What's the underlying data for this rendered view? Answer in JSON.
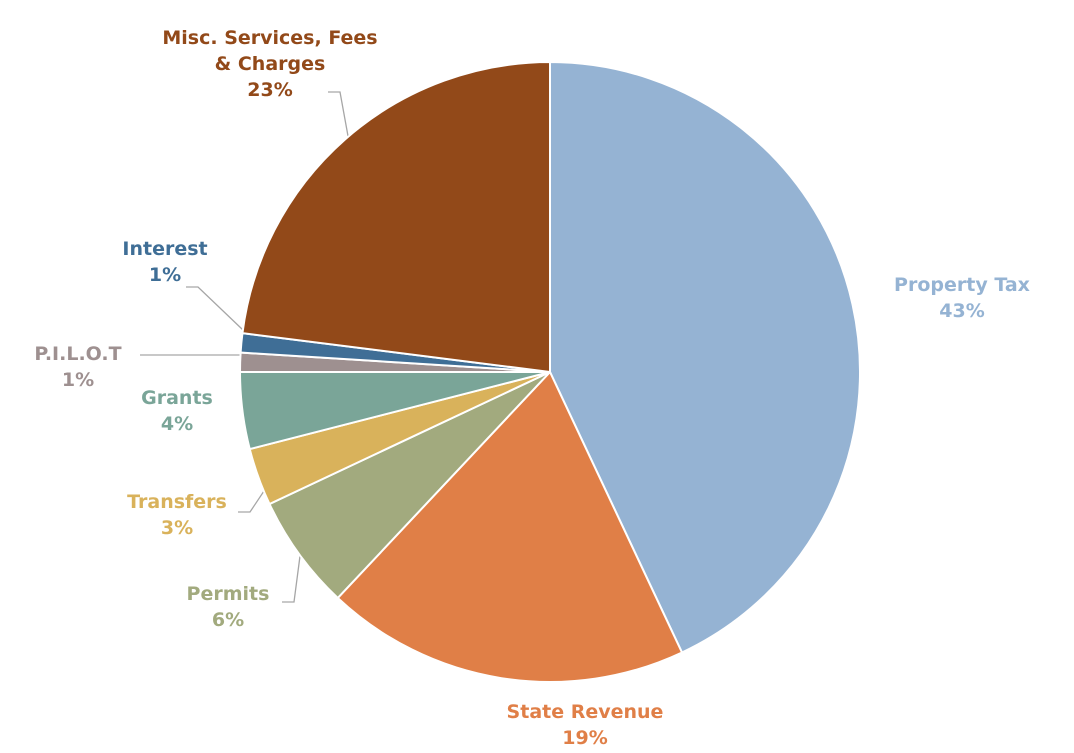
{
  "chart_data": {
    "type": "pie",
    "categories": [
      "Property Tax",
      "State Revenue",
      "Permits",
      "Transfers",
      "Grants",
      "P.I.L.O.T",
      "Interest",
      "Misc. Services, Fees & Charges"
    ],
    "values": [
      43,
      19,
      6,
      3,
      4,
      1,
      1,
      23
    ],
    "value_labels": [
      "43%",
      "19%",
      "6%",
      "3%",
      "4%",
      "1%",
      "1%",
      "23%"
    ],
    "colors": [
      "#95b3d3",
      "#e07f47",
      "#a2aa7e",
      "#d9b25b",
      "#7aa598",
      "#9e9090",
      "#3f6e96",
      "#924919"
    ]
  }
}
